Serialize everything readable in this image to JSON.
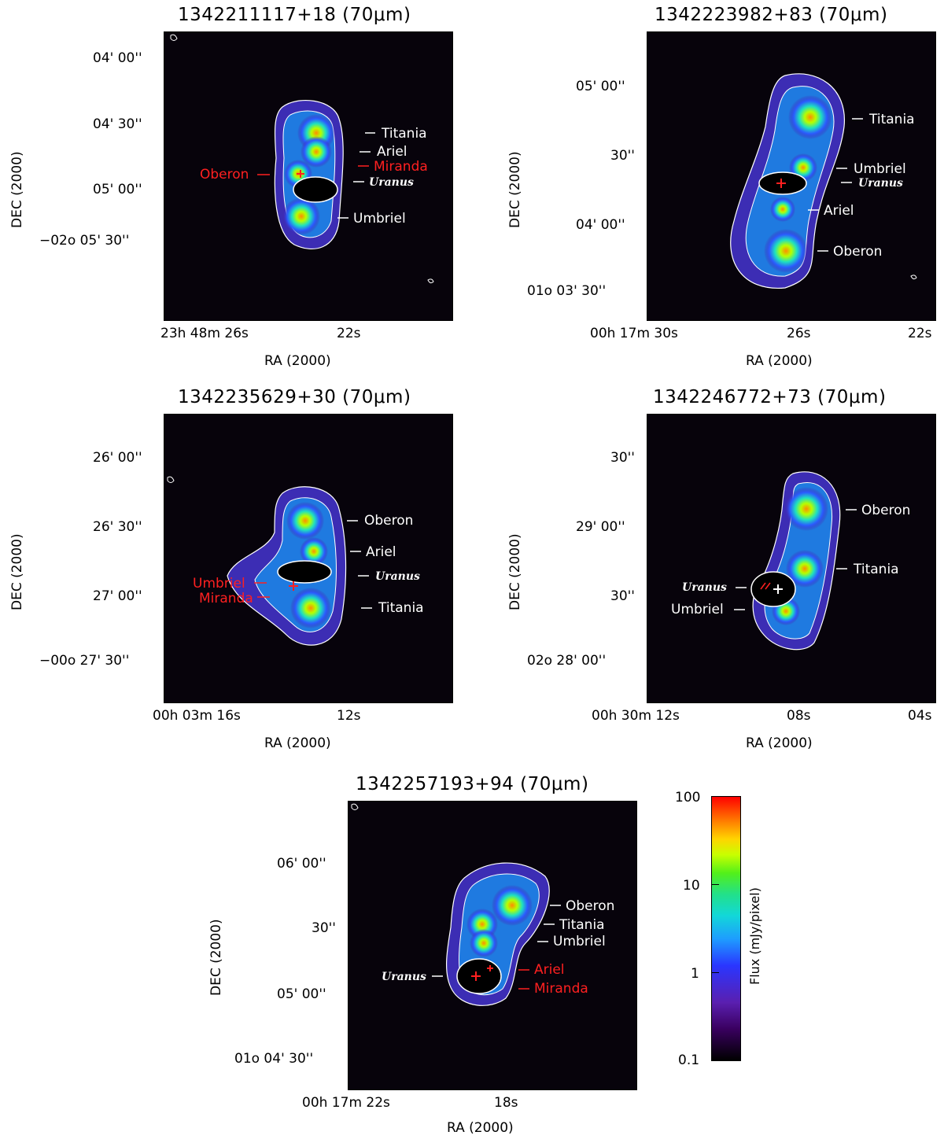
{
  "panels": [
    {
      "title": "1342211117+18 (70μm)",
      "ra_ticks": [
        "23h 48m 26s",
        "22s"
      ],
      "dec_ticks": [
        "04' 00''",
        "04' 30''",
        "05' 00''",
        "−02o 05' 30''"
      ],
      "xlabel": "RA (2000)",
      "ylabel": "DEC (2000)",
      "labels": [
        "Titania",
        "Ariel",
        "Miranda",
        "Oberon",
        "Uranus",
        "Umbriel"
      ]
    },
    {
      "title": "1342223982+83 (70μm)",
      "ra_ticks": [
        "00h 17m 30s",
        "26s",
        "22s"
      ],
      "dec_ticks": [
        "05' 00''",
        "30''",
        "04' 00''",
        "01o 03' 30''"
      ],
      "xlabel": "RA (2000)",
      "ylabel": "DEC (2000)",
      "labels": [
        "Titania",
        "Umbriel",
        "Uranus",
        "Ariel",
        "Oberon"
      ]
    },
    {
      "title": "1342235629+30 (70μm)",
      "ra_ticks": [
        "00h 03m 16s",
        "12s"
      ],
      "dec_ticks": [
        "26' 00''",
        "26' 30''",
        "27' 00''",
        "−00o 27' 30''"
      ],
      "xlabel": "RA (2000)",
      "ylabel": "DEC (2000)",
      "labels": [
        "Oberon",
        "Ariel",
        "Uranus",
        "Umbriel",
        "Miranda",
        "Titania"
      ]
    },
    {
      "title": "1342246772+73 (70μm)",
      "ra_ticks": [
        "00h 30m 12s",
        "08s",
        "04s"
      ],
      "dec_ticks": [
        "30''",
        "29' 00''",
        "30''",
        "02o 28' 00''"
      ],
      "xlabel": "RA (2000)",
      "ylabel": "DEC (2000)",
      "labels": [
        "Oberon",
        "Titania",
        "Uranus",
        "Umbriel"
      ]
    },
    {
      "title": "1342257193+94 (70μm)",
      "ra_ticks": [
        "00h 17m 22s",
        "18s"
      ],
      "dec_ticks": [
        "06' 00''",
        "30''",
        "05' 00''",
        "01o 04' 30''"
      ],
      "xlabel": "RA (2000)",
      "ylabel": "DEC (2000)",
      "labels": [
        "Oberon",
        "Titania",
        "Umbriel",
        "Uranus",
        "Ariel",
        "Miranda"
      ]
    }
  ],
  "colorbar": {
    "label": "Flux (mJy/pixel)",
    "ticks": [
      "100",
      "10",
      "1",
      "0.1"
    ],
    "scale": "log"
  },
  "colors": {
    "background": "#07030b",
    "contour": "#ffffff",
    "label_white": "#ffffff",
    "label_red": "#ff2020"
  }
}
